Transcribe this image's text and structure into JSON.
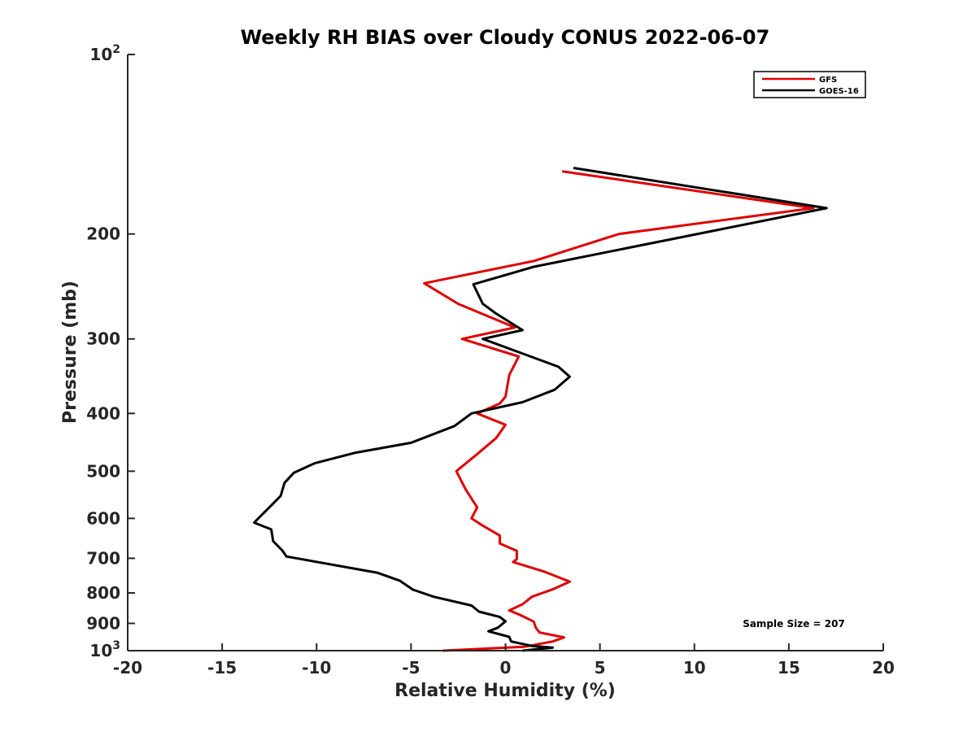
{
  "chart_data": {
    "type": "line",
    "title": "Weekly RH BIAS over Cloudy CONUS 2022-06-07",
    "xlabel": "Relative Humidity (%)",
    "ylabel": "Pressure (mb)",
    "xlim": [
      -20,
      20
    ],
    "ylim": [
      100,
      1000
    ],
    "y_scale": "log",
    "y_reversed": true,
    "grid": false,
    "legend_position": "top-right",
    "x_ticks": [
      -20,
      -15,
      -10,
      -5,
      0,
      5,
      10,
      15,
      20
    ],
    "x_tick_labels": [
      "-20",
      "-15",
      "-10",
      "-5",
      "0",
      "5",
      "10",
      "15",
      "20"
    ],
    "y_ticks": [
      100,
      200,
      300,
      400,
      500,
      600,
      700,
      800,
      900,
      1000
    ],
    "y_tick_labels": [
      {
        "base": "10",
        "exp": "2"
      },
      {
        "base": "200",
        "exp": ""
      },
      {
        "base": "300",
        "exp": ""
      },
      {
        "base": "400",
        "exp": ""
      },
      {
        "base": "500",
        "exp": ""
      },
      {
        "base": "600",
        "exp": ""
      },
      {
        "base": "700",
        "exp": ""
      },
      {
        "base": "800",
        "exp": ""
      },
      {
        "base": "900",
        "exp": ""
      },
      {
        "base": "10",
        "exp": "3"
      }
    ],
    "annotation": "Sample Size = 207",
    "series": [
      {
        "name": "GFS",
        "color": "#e00000",
        "points": [
          [
            3.0,
            157
          ],
          [
            16.3,
            181
          ],
          [
            6.0,
            200
          ],
          [
            1.5,
            222
          ],
          [
            -4.3,
            242
          ],
          [
            -2.5,
            262
          ],
          [
            0.5,
            287
          ],
          [
            -2.3,
            300
          ],
          [
            0.7,
            321
          ],
          [
            0.2,
            345
          ],
          [
            0.0,
            375
          ],
          [
            -0.3,
            385
          ],
          [
            -1.5,
            400
          ],
          [
            0.0,
            418
          ],
          [
            -0.5,
            440
          ],
          [
            -1.5,
            468
          ],
          [
            -2.6,
            500
          ],
          [
            -2.1,
            537
          ],
          [
            -1.5,
            575
          ],
          [
            -1.8,
            600
          ],
          [
            -1.2,
            617
          ],
          [
            -0.3,
            641
          ],
          [
            -0.3,
            661
          ],
          [
            0.6,
            680
          ],
          [
            0.6,
            702
          ],
          [
            0.4,
            710
          ],
          [
            2.0,
            736
          ],
          [
            3.4,
            766
          ],
          [
            2.5,
            789
          ],
          [
            1.4,
            812
          ],
          [
            0.9,
            836
          ],
          [
            0.2,
            856
          ],
          [
            0.8,
            872
          ],
          [
            1.5,
            894
          ],
          [
            1.6,
            915
          ],
          [
            1.8,
            932
          ],
          [
            3.1,
            950
          ],
          [
            2.5,
            965
          ],
          [
            1.0,
            985
          ],
          [
            -3.3,
            1000
          ]
        ]
      },
      {
        "name": "GOES-16",
        "color": "#000000",
        "points": [
          [
            3.6,
            155
          ],
          [
            17.0,
            181
          ],
          [
            1.5,
            227
          ],
          [
            -1.7,
            243
          ],
          [
            -1.2,
            262
          ],
          [
            -0.5,
            272
          ],
          [
            0.9,
            290
          ],
          [
            -1.2,
            300
          ],
          [
            2.8,
            334
          ],
          [
            3.4,
            347
          ],
          [
            2.6,
            365
          ],
          [
            0.9,
            383
          ],
          [
            -1.8,
            400
          ],
          [
            -2.7,
            420
          ],
          [
            -5.0,
            448
          ],
          [
            -8.0,
            466
          ],
          [
            -10.1,
            485
          ],
          [
            -11.2,
            503
          ],
          [
            -11.7,
            523
          ],
          [
            -11.9,
            550
          ],
          [
            -12.5,
            575
          ],
          [
            -13.0,
            596
          ],
          [
            -13.3,
            610
          ],
          [
            -12.4,
            626
          ],
          [
            -12.3,
            655
          ],
          [
            -11.8,
            680
          ],
          [
            -11.6,
            695
          ],
          [
            -6.8,
            740
          ],
          [
            -5.6,
            763
          ],
          [
            -4.9,
            790
          ],
          [
            -3.8,
            812
          ],
          [
            -1.8,
            840
          ],
          [
            -1.4,
            860
          ],
          [
            -0.3,
            878
          ],
          [
            0.0,
            893
          ],
          [
            -0.4,
            915
          ],
          [
            -0.9,
            928
          ],
          [
            0.2,
            948
          ],
          [
            0.3,
            965
          ],
          [
            1.4,
            982
          ],
          [
            2.5,
            988
          ],
          [
            0.9,
            1000
          ]
        ]
      }
    ]
  }
}
